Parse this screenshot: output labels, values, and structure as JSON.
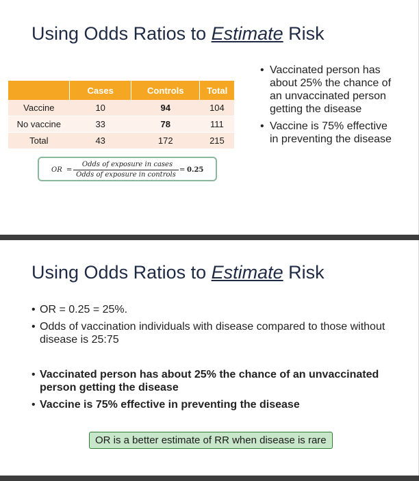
{
  "slide1": {
    "title_pre": "Using Odds Ratios to ",
    "title_em": "Estimate",
    "title_post": " Risk",
    "table": {
      "headers": [
        "",
        "Cases",
        "Controls",
        "Total"
      ],
      "rows": [
        [
          "Vaccine",
          "10",
          "94",
          "104"
        ],
        [
          "No vaccine",
          "33",
          "78",
          "111"
        ],
        [
          "Total",
          "43",
          "172",
          "215"
        ]
      ]
    },
    "formula": {
      "lhs": "OR",
      "eq": "=",
      "numerator": "Odds of exposure in cases",
      "denominator": "Odds of exposure in controls",
      "eq2": "=",
      "value": "0.25"
    },
    "bullets": [
      "Vaccinated person has about 25% the chance of an unvaccinated person getting the disease",
      "Vaccine is 75% effective in preventing the disease"
    ]
  },
  "slide2": {
    "title_pre": "Using Odds Ratios to ",
    "title_em": "Estimate",
    "title_post": " Risk",
    "bullets_plain": [
      "OR = 0.25 = 25%.",
      "Odds of vaccination individuals with disease compared to those without disease is 25:75"
    ],
    "bullets_bold": [
      "Vaccinated person has about 25% the chance of an unvaccinated person getting the disease",
      "Vaccine is 75% effective in preventing the disease"
    ],
    "note": "OR is a better estimate of RR when disease is rare"
  },
  "colors": {
    "table_header": "#f5a623",
    "table_row": "#fce8dc",
    "formula_border": "#8ab89a",
    "note_fill": "#c8e6c9",
    "note_border": "#2e7d32",
    "title": "#1f2a44"
  }
}
